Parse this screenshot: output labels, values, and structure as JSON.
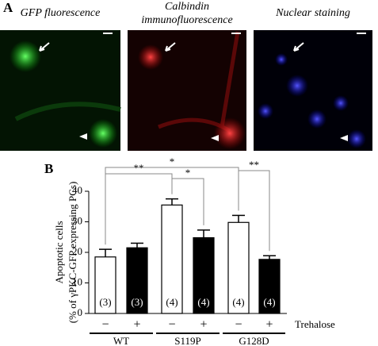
{
  "panel_a": {
    "label": "A",
    "image_titles": [
      [
        "GFP fluorescence"
      ],
      [
        "Calbindin",
        "immunofluorescence"
      ],
      [
        "Nuclear staining"
      ]
    ]
  },
  "chart_data": {
    "type": "bar",
    "panel_label": "B",
    "y_label": [
      "Apoptotic cells",
      "(% of γPKC-GFP expressing PCs)"
    ],
    "categories": [
      "−",
      "+",
      "−",
      "+",
      "−",
      "+"
    ],
    "category_title": "Trehalose",
    "groups": [
      "WT",
      "S119P",
      "G128D"
    ],
    "values": [
      18.5,
      21.5,
      35.5,
      24.8,
      29.8,
      17.7
    ],
    "errors": [
      2.5,
      1.5,
      2.0,
      2.5,
      2.3,
      1.2
    ],
    "colors": [
      "#ffffff",
      "#000000",
      "#ffffff",
      "#000000",
      "#ffffff",
      "#000000"
    ],
    "n_labels": [
      "(3)",
      "(3)",
      "(4)",
      "(4)",
      "(4)",
      "(4)"
    ],
    "significance": [
      "**",
      "*",
      "*",
      "**"
    ],
    "ylim": [
      0,
      40
    ],
    "yticks": [
      0,
      10,
      20,
      30,
      40
    ]
  }
}
